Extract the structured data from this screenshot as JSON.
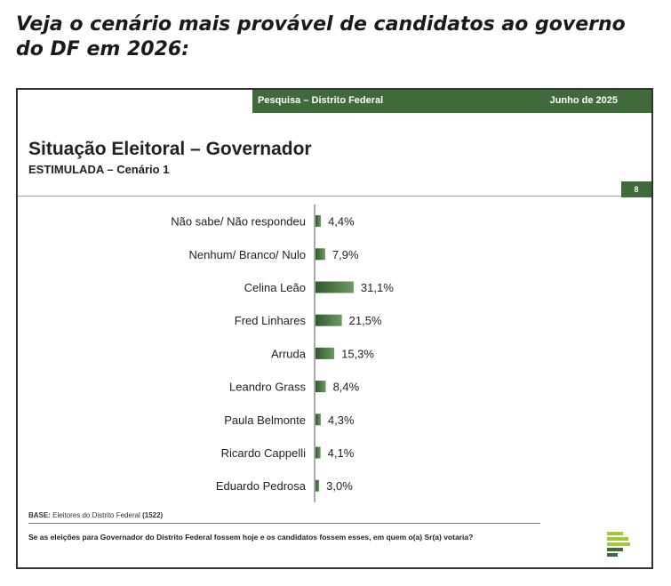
{
  "headline": "Veja o cenário mais provável de candidatos ao governo do DF em 2026:",
  "report": {
    "survey_label": "Pesquisa – Distrito Federal",
    "date_label": "Junho de 2025",
    "page_number": "8",
    "base_label": "BASE:",
    "base_text": "Eleitores do Distrito Federal",
    "base_count": "(1522)",
    "question": "Se as eleições para Governador do Distrito Federal fossem hoje e os candidatos fossem esses, em quem o(a) Sr(a) votaria?"
  },
  "colors": {
    "brand_green": "#3f6b3a",
    "bar_dark": "#2f5a2c",
    "bar_light": "#6f9a63",
    "logo_green": "#a4c639"
  },
  "chart_data": {
    "type": "bar",
    "orientation": "horizontal",
    "title": "Situação Eleitoral – Governador",
    "subtitle": "ESTIMULADA – Cenário 1",
    "categories": [
      "Não sabe/ Não respondeu",
      "Nenhum/ Branco/ Nulo",
      "Celina Leão",
      "Fred Linhares",
      "Arruda",
      "Leandro Grass",
      "Paula Belmonte",
      "Ricardo Cappelli",
      "Eduardo Pedrosa"
    ],
    "values": [
      4.4,
      7.9,
      31.1,
      21.5,
      15.3,
      8.4,
      4.3,
      4.1,
      3.0
    ],
    "data_labels": [
      "4,4%",
      "7,9%",
      "31,1%",
      "21,5%",
      "15,3%",
      "8,4%",
      "4,3%",
      "4,1%",
      "3,0%"
    ],
    "unit": "%",
    "grid": false,
    "legend": "none"
  }
}
